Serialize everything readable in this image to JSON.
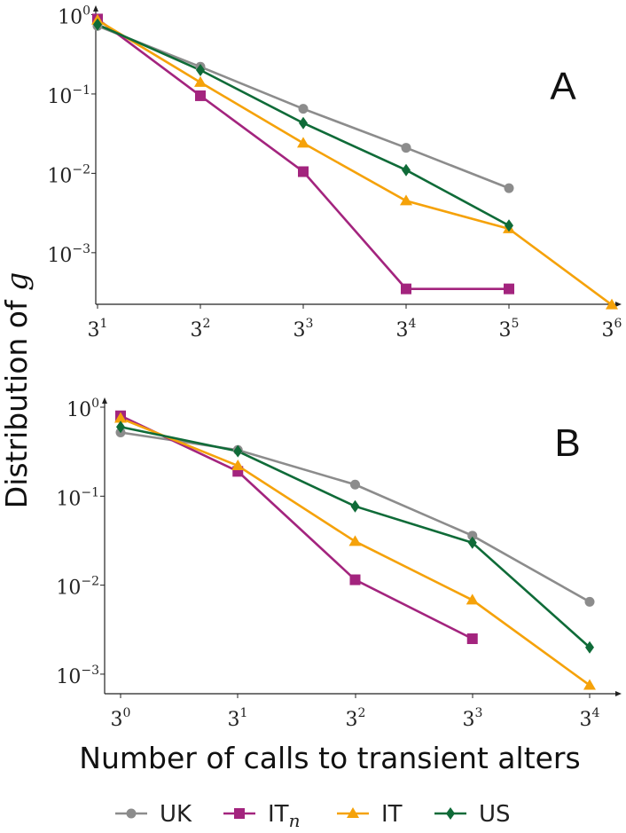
{
  "chart_data": [
    {
      "type": "line",
      "panel_label": "A",
      "x_tick_labels": [
        {
          "base": "3",
          "exp": "1"
        },
        {
          "base": "3",
          "exp": "2"
        },
        {
          "base": "3",
          "exp": "3"
        },
        {
          "base": "3",
          "exp": "4"
        },
        {
          "base": "3",
          "exp": "5"
        },
        {
          "base": "3",
          "exp": "6"
        }
      ],
      "x_exponent_range": [
        1,
        6
      ],
      "y_tick_labels": [
        {
          "base": "10",
          "exp": "0"
        },
        {
          "base": "10",
          "exp": "−1"
        },
        {
          "base": "10",
          "exp": "−2"
        },
        {
          "base": "10",
          "exp": "−3"
        }
      ],
      "y_log_range": [
        -3.65,
        0.05
      ],
      "series": [
        {
          "name": "UK",
          "x_exp": [
            1,
            2,
            3,
            4,
            5
          ],
          "values": [
            0.72,
            0.22,
            0.065,
            0.021,
            0.0065
          ]
        },
        {
          "name": "IT_n",
          "x_exp": [
            1,
            2,
            3,
            4,
            5
          ],
          "values": [
            0.88,
            0.095,
            0.0105,
            0.00035,
            0.00035
          ]
        },
        {
          "name": "IT",
          "x_exp": [
            1,
            2,
            3,
            4,
            5,
            6
          ],
          "values": [
            0.85,
            0.14,
            0.024,
            0.0045,
            0.002,
            0.00022
          ]
        },
        {
          "name": "US",
          "x_exp": [
            1,
            2,
            3,
            4,
            5
          ],
          "values": [
            0.75,
            0.2,
            0.043,
            0.011,
            0.0022
          ]
        }
      ]
    },
    {
      "type": "line",
      "panel_label": "B",
      "x_tick_labels": [
        {
          "base": "3",
          "exp": "0"
        },
        {
          "base": "3",
          "exp": "1"
        },
        {
          "base": "3",
          "exp": "2"
        },
        {
          "base": "3",
          "exp": "3"
        },
        {
          "base": "3",
          "exp": "4"
        }
      ],
      "x_exponent_range": [
        0,
        4
      ],
      "y_tick_labels": [
        {
          "base": "10",
          "exp": "0"
        },
        {
          "base": "10",
          "exp": "−1"
        },
        {
          "base": "10",
          "exp": "−2"
        },
        {
          "base": "10",
          "exp": "−3"
        }
      ],
      "y_log_range": [
        -3.22,
        0.05
      ],
      "series": [
        {
          "name": "UK",
          "x_exp": [
            0,
            1,
            2,
            3,
            4
          ],
          "values": [
            0.52,
            0.33,
            0.135,
            0.036,
            0.0065
          ]
        },
        {
          "name": "IT_n",
          "x_exp": [
            0,
            1,
            2,
            3
          ],
          "values": [
            0.8,
            0.19,
            0.0115,
            0.0025
          ]
        },
        {
          "name": "IT",
          "x_exp": [
            0,
            1,
            2,
            3,
            4
          ],
          "values": [
            0.75,
            0.22,
            0.031,
            0.0068,
            0.00075
          ]
        },
        {
          "name": "US",
          "x_exp": [
            0,
            1,
            2,
            3,
            4
          ],
          "values": [
            0.6,
            0.32,
            0.077,
            0.03,
            0.002
          ]
        }
      ]
    }
  ],
  "xlabel": "Number of calls to transient alters",
  "ylabel_text": "Distribution of ",
  "ylabel_var": "g",
  "legend": [
    {
      "key": "UK",
      "label": "UK",
      "sub": "",
      "color": "#8c8c8c",
      "marker": "circle"
    },
    {
      "key": "IT_n",
      "label": "IT",
      "sub": "n",
      "color": "#a3247e",
      "marker": "square"
    },
    {
      "key": "IT",
      "label": "IT",
      "sub": "",
      "color": "#f5a20a",
      "marker": "triangle"
    },
    {
      "key": "US",
      "label": "US",
      "sub": "",
      "color": "#0f6b38",
      "marker": "diamond"
    }
  ]
}
